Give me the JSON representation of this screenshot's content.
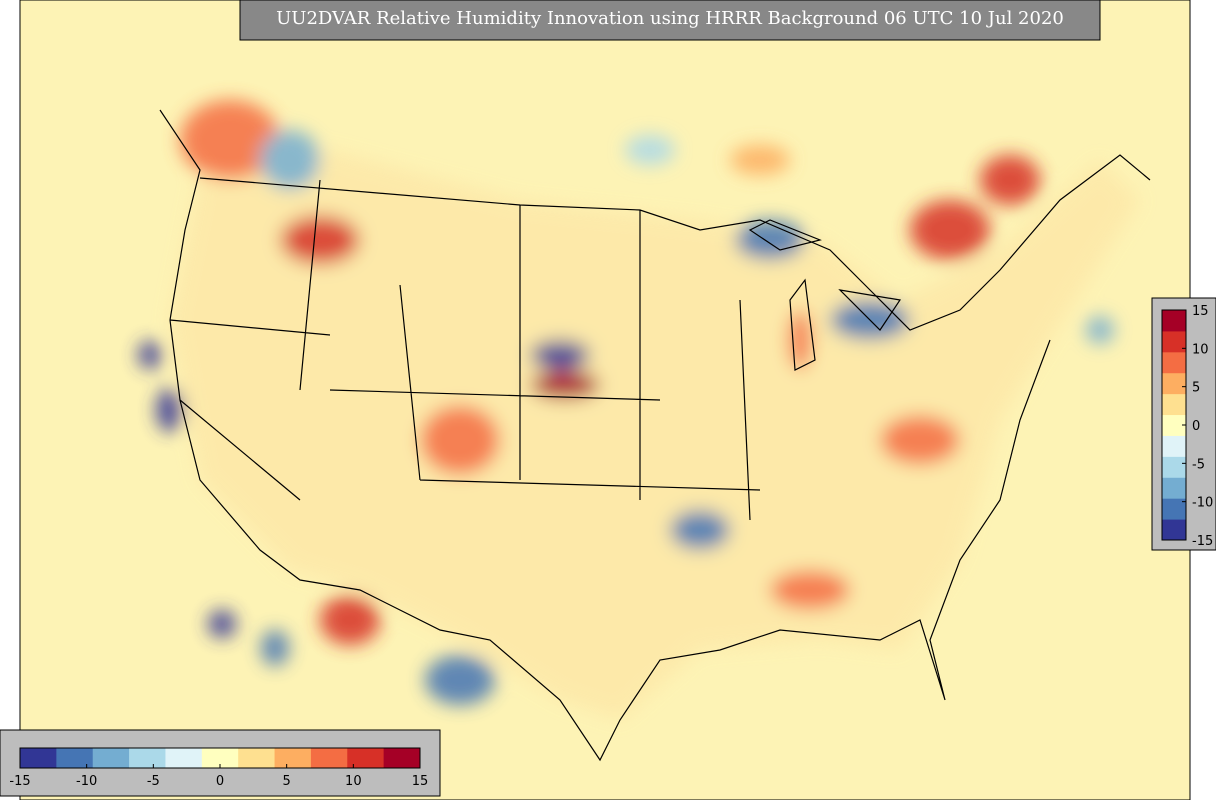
{
  "title": "UU2DVAR Relative Humidity Innovation using HRRR Background 06 UTC 10 Jul 2020",
  "colors": [
    "#313695",
    "#4575b4",
    "#74add1",
    "#abd9e9",
    "#e0f3f8",
    "#ffffbf",
    "#fee090",
    "#fdae61",
    "#f46d43",
    "#d73027",
    "#a50026"
  ],
  "colorbars": [
    {
      "orientation": "horizontal",
      "lim": [
        -15,
        15
      ],
      "ticks": [
        -15,
        -10,
        -5,
        0,
        5,
        10,
        15
      ]
    },
    {
      "orientation": "vertical",
      "lim": [
        -15,
        15
      ],
      "ticks": [
        15,
        10,
        5,
        0,
        -5,
        -10,
        -15
      ]
    }
  ]
}
